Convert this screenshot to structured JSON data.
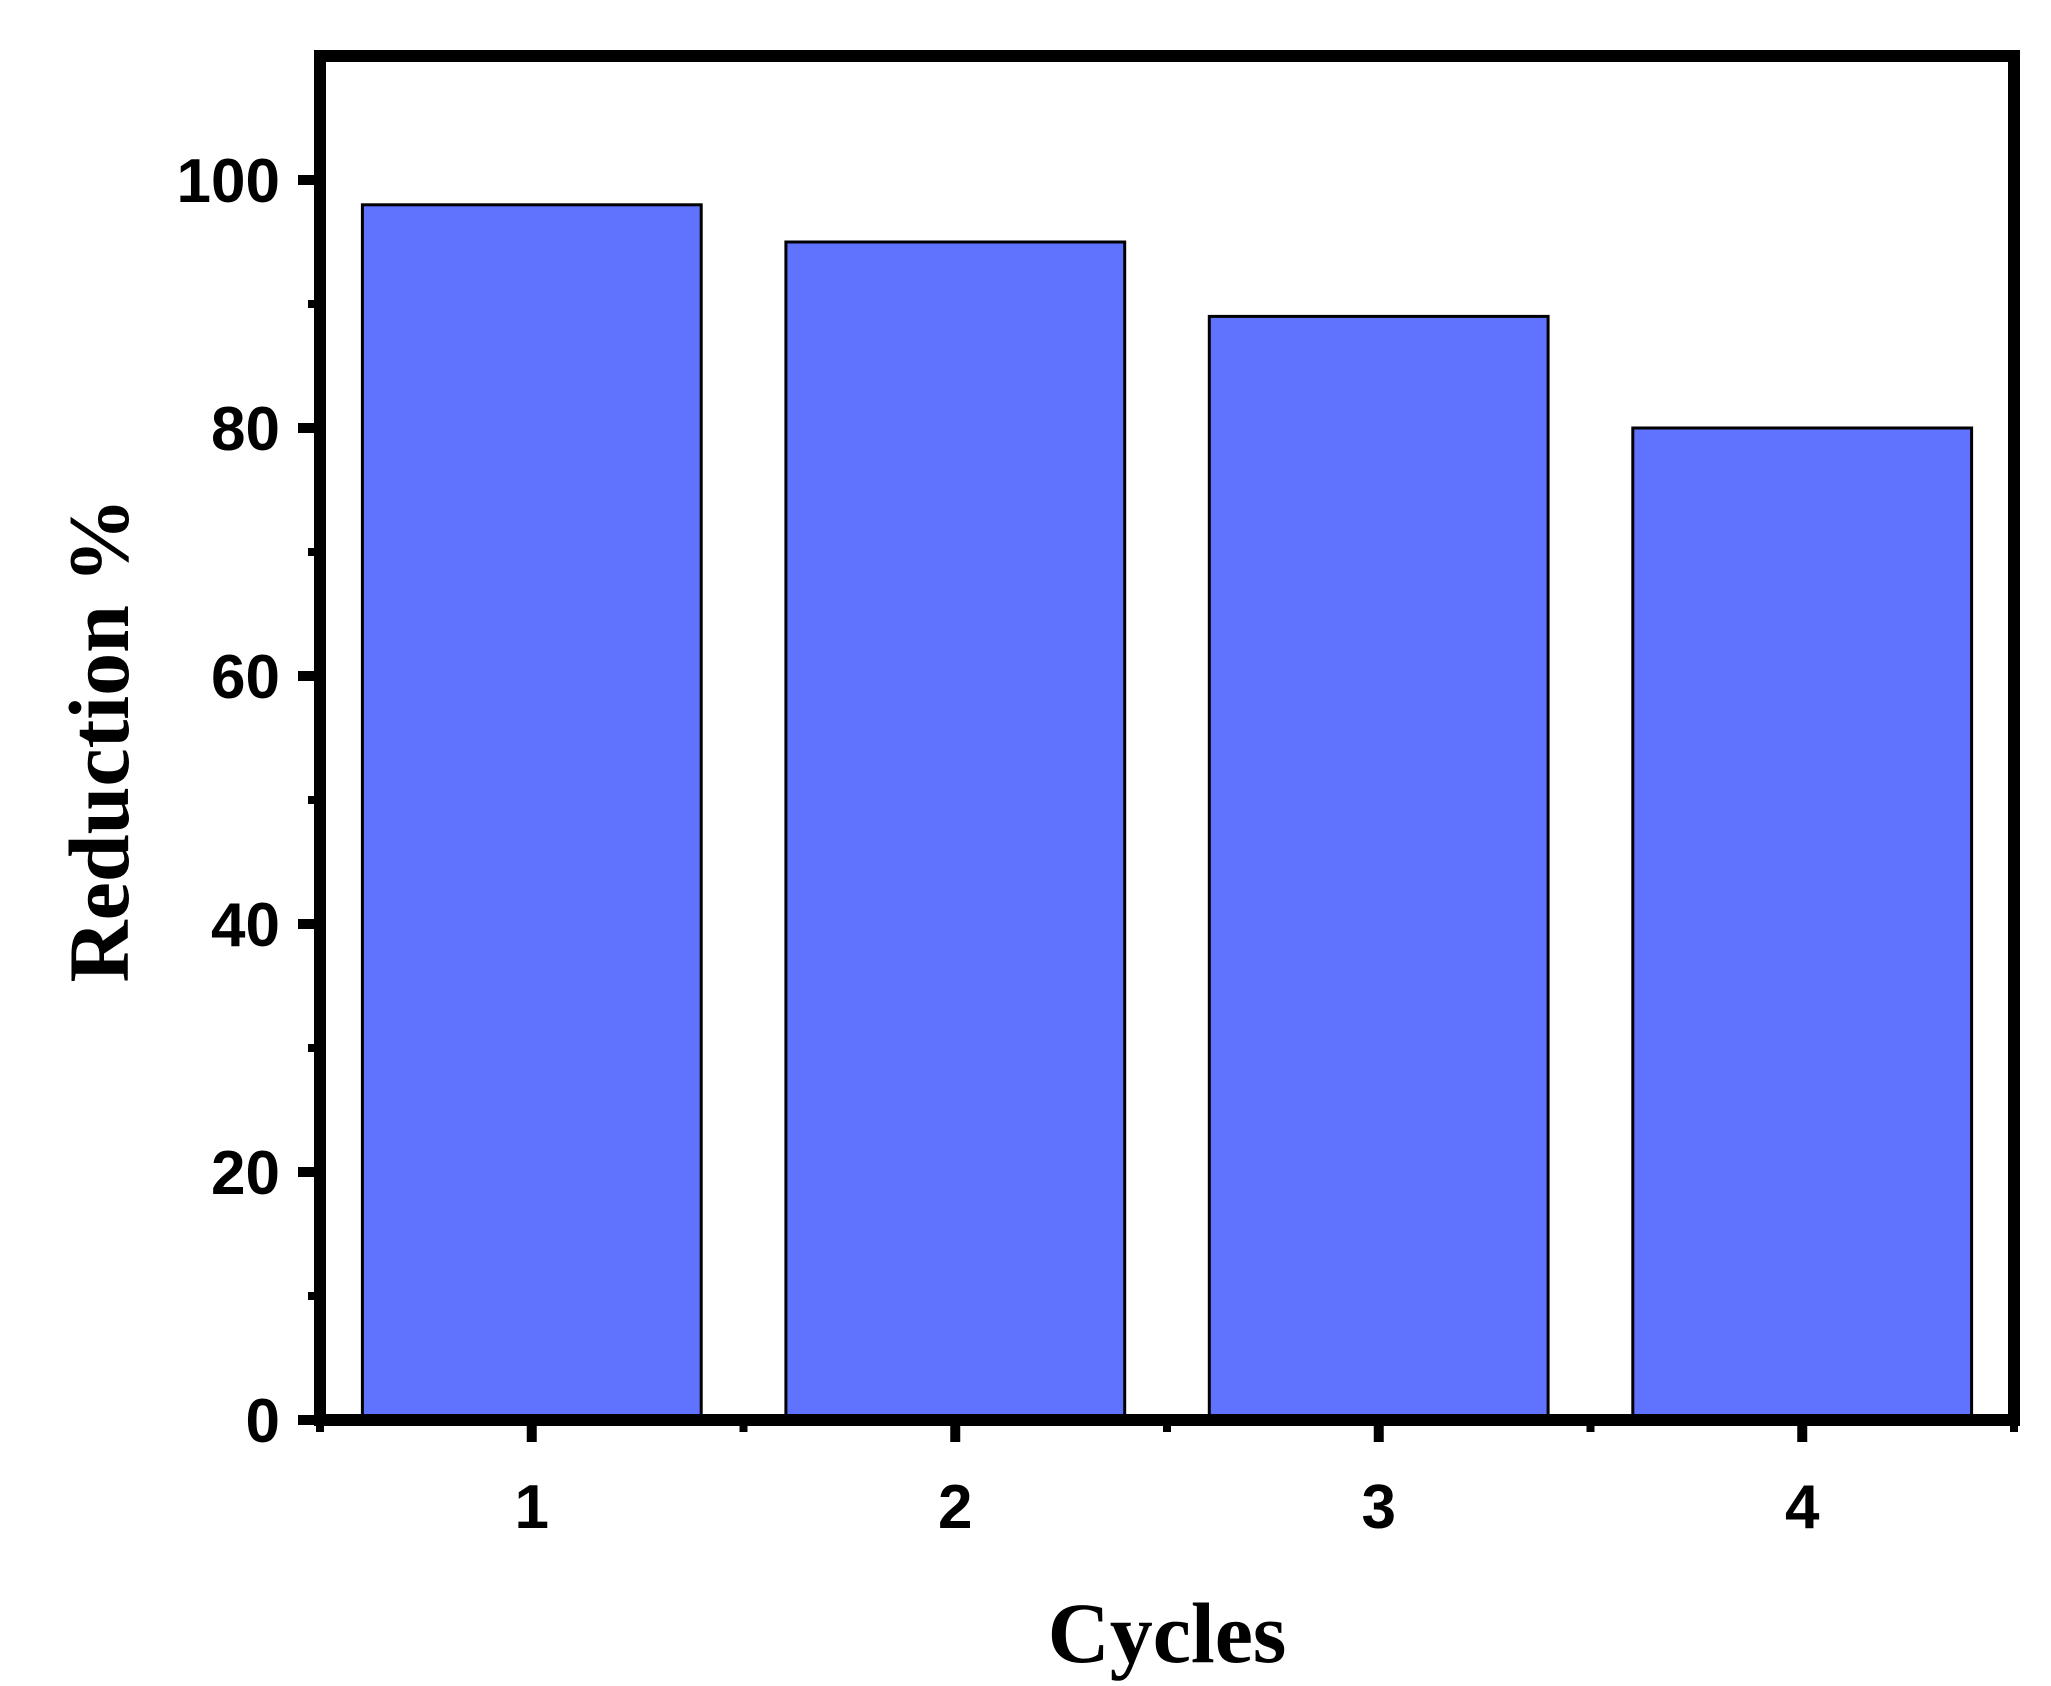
{
  "chart_data": {
    "type": "bar",
    "categories": [
      "1",
      "2",
      "3",
      "4"
    ],
    "values": [
      98,
      95,
      89,
      80
    ],
    "title": "",
    "xlabel": "Cycles",
    "ylabel": "Reduction %",
    "ylim": [
      0,
      110
    ],
    "yticks": [
      "0",
      "20",
      "40",
      "60",
      "80",
      "100"
    ],
    "grid": false,
    "legend": "none",
    "bar_color": "#5f73ff",
    "bar_edge_color": "#000000",
    "axis_color": "#000000"
  }
}
